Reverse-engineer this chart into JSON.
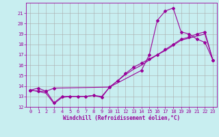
{
  "xlabel": "Windchill (Refroidissement éolien,°C)",
  "background_color": "#c8eef0",
  "grid_color": "#aaaaaa",
  "line_color": "#990099",
  "xlim": [
    -0.5,
    23.5
  ],
  "ylim": [
    12,
    22
  ],
  "yticks": [
    12,
    13,
    14,
    15,
    16,
    17,
    18,
    19,
    20,
    21
  ],
  "xticks": [
    0,
    1,
    2,
    3,
    4,
    5,
    6,
    7,
    8,
    9,
    10,
    11,
    12,
    13,
    14,
    15,
    16,
    17,
    18,
    19,
    20,
    21,
    22,
    23
  ],
  "series1_x": [
    0,
    1,
    2,
    3,
    10,
    14,
    15,
    16,
    17,
    18,
    19,
    20,
    21,
    22,
    23
  ],
  "series1_y": [
    13.6,
    13.8,
    13.5,
    13.8,
    13.9,
    15.5,
    17.0,
    20.3,
    21.2,
    21.5,
    19.2,
    19.0,
    18.5,
    18.2,
    16.5
  ],
  "series2_x": [
    0,
    1,
    2,
    3,
    4,
    5,
    6,
    7,
    8,
    9,
    10,
    11,
    12,
    13,
    14,
    15,
    16,
    17,
    18,
    19,
    20,
    21,
    22,
    23
  ],
  "series2_y": [
    13.6,
    13.5,
    13.5,
    12.4,
    13.0,
    13.0,
    13.0,
    13.0,
    13.1,
    12.9,
    13.9,
    14.5,
    15.2,
    15.8,
    16.2,
    16.6,
    17.0,
    17.5,
    18.0,
    18.5,
    18.7,
    19.0,
    19.2,
    16.5
  ],
  "series3_x": [
    0,
    1,
    2,
    3,
    4,
    5,
    6,
    7,
    8,
    9,
    10,
    11,
    12,
    13,
    14,
    15,
    16,
    17,
    18,
    19,
    20,
    21,
    22,
    23
  ],
  "series3_y": [
    13.6,
    13.5,
    13.3,
    12.3,
    12.9,
    13.0,
    13.0,
    13.0,
    13.1,
    13.0,
    13.9,
    14.5,
    15.1,
    15.6,
    16.0,
    16.5,
    17.0,
    17.4,
    17.9,
    18.4,
    18.6,
    18.8,
    19.0,
    16.5
  ],
  "tick_fontsize": 5.0,
  "xlabel_fontsize": 5.5
}
